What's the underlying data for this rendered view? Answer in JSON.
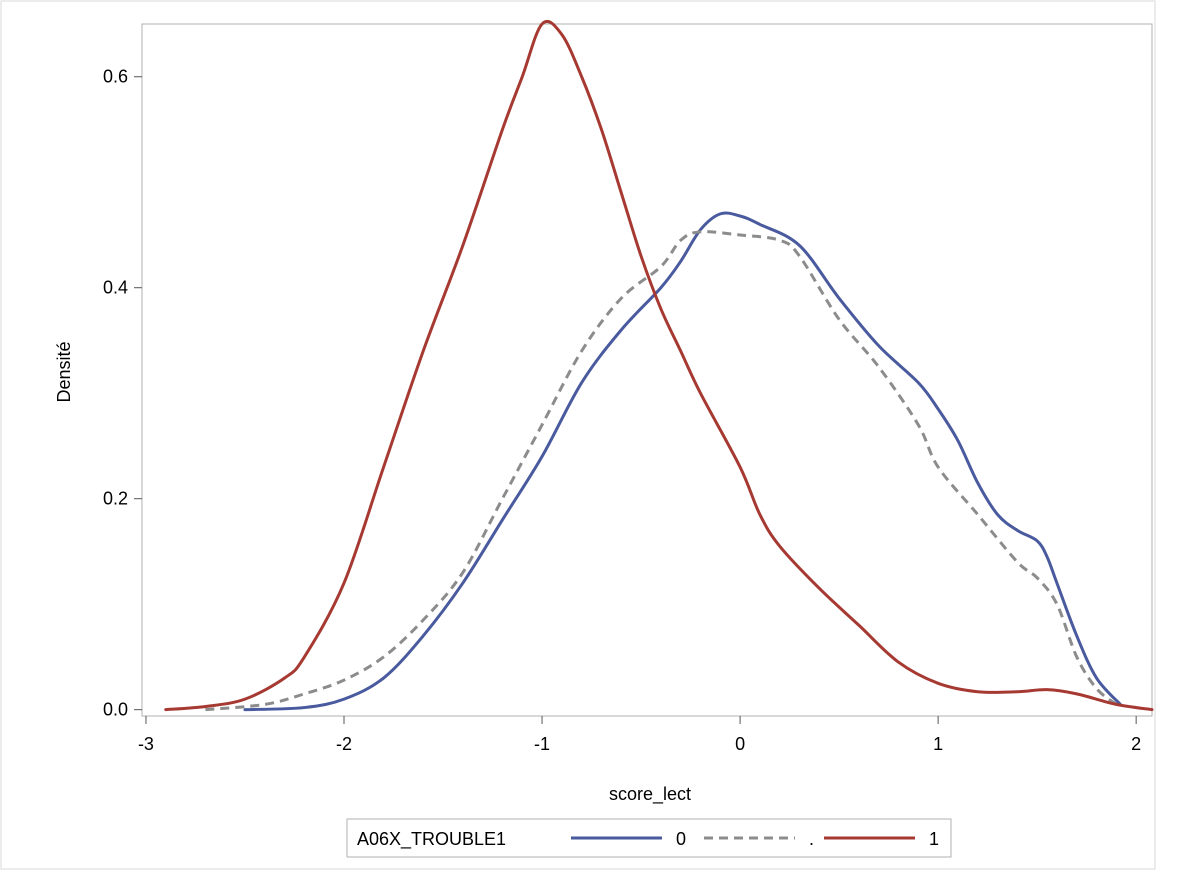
{
  "chart_data": {
    "type": "line",
    "title": "",
    "xlabel": "score_lect",
    "ylabel": "Densité",
    "xlim": [
      -3.02,
      2.08
    ],
    "ylim": [
      -0.006,
      0.65
    ],
    "xticks": [
      "-3",
      "-2",
      "-1",
      "0",
      "1",
      "2"
    ],
    "yticks": [
      "0.0",
      "0.2",
      "0.4",
      "0.6"
    ],
    "grid": false,
    "legend": {
      "title": "A06X_TROUBLE1",
      "placement": "bottom-center"
    },
    "series": [
      {
        "name": "0",
        "color": "#4a5a9e",
        "dash": "solid",
        "points": [
          [
            -2.5,
            0.0
          ],
          [
            -2.2,
            0.002
          ],
          [
            -2.0,
            0.01
          ],
          [
            -1.8,
            0.03
          ],
          [
            -1.6,
            0.07
          ],
          [
            -1.4,
            0.12
          ],
          [
            -1.2,
            0.18
          ],
          [
            -1.0,
            0.24
          ],
          [
            -0.8,
            0.31
          ],
          [
            -0.6,
            0.36
          ],
          [
            -0.4,
            0.4
          ],
          [
            -0.3,
            0.425
          ],
          [
            -0.2,
            0.455
          ],
          [
            -0.1,
            0.47
          ],
          [
            0.0,
            0.468
          ],
          [
            0.1,
            0.46
          ],
          [
            0.3,
            0.44
          ],
          [
            0.5,
            0.39
          ],
          [
            0.7,
            0.345
          ],
          [
            0.9,
            0.31
          ],
          [
            1.0,
            0.285
          ],
          [
            1.1,
            0.255
          ],
          [
            1.2,
            0.215
          ],
          [
            1.3,
            0.185
          ],
          [
            1.4,
            0.17
          ],
          [
            1.5,
            0.16
          ],
          [
            1.55,
            0.145
          ],
          [
            1.6,
            0.12
          ],
          [
            1.7,
            0.07
          ],
          [
            1.8,
            0.03
          ],
          [
            1.92,
            0.005
          ]
        ]
      },
      {
        "name": ".",
        "color": "#8c8c8c",
        "dash": "dashed",
        "points": [
          [
            -2.7,
            0.0
          ],
          [
            -2.4,
            0.005
          ],
          [
            -2.2,
            0.015
          ],
          [
            -2.0,
            0.028
          ],
          [
            -1.8,
            0.05
          ],
          [
            -1.6,
            0.085
          ],
          [
            -1.4,
            0.13
          ],
          [
            -1.2,
            0.2
          ],
          [
            -1.0,
            0.27
          ],
          [
            -0.8,
            0.34
          ],
          [
            -0.6,
            0.39
          ],
          [
            -0.4,
            0.42
          ],
          [
            -0.3,
            0.445
          ],
          [
            -0.2,
            0.453
          ],
          [
            0.0,
            0.45
          ],
          [
            0.2,
            0.445
          ],
          [
            0.3,
            0.43
          ],
          [
            0.5,
            0.37
          ],
          [
            0.7,
            0.325
          ],
          [
            0.9,
            0.27
          ],
          [
            1.0,
            0.23
          ],
          [
            1.2,
            0.185
          ],
          [
            1.4,
            0.14
          ],
          [
            1.5,
            0.125
          ],
          [
            1.6,
            0.1
          ],
          [
            1.7,
            0.05
          ],
          [
            1.8,
            0.02
          ],
          [
            1.9,
            0.005
          ]
        ]
      },
      {
        "name": "1",
        "color": "#a63a32",
        "dash": "solid",
        "points": [
          [
            -2.9,
            0.0
          ],
          [
            -2.7,
            0.003
          ],
          [
            -2.5,
            0.01
          ],
          [
            -2.3,
            0.03
          ],
          [
            -2.2,
            0.05
          ],
          [
            -2.0,
            0.12
          ],
          [
            -1.8,
            0.23
          ],
          [
            -1.6,
            0.34
          ],
          [
            -1.4,
            0.44
          ],
          [
            -1.2,
            0.55
          ],
          [
            -1.1,
            0.6
          ],
          [
            -1.0,
            0.65
          ],
          [
            -0.9,
            0.64
          ],
          [
            -0.8,
            0.6
          ],
          [
            -0.7,
            0.55
          ],
          [
            -0.6,
            0.49
          ],
          [
            -0.5,
            0.43
          ],
          [
            -0.4,
            0.38
          ],
          [
            -0.3,
            0.34
          ],
          [
            -0.2,
            0.3
          ],
          [
            0.0,
            0.23
          ],
          [
            0.1,
            0.185
          ],
          [
            0.2,
            0.155
          ],
          [
            0.4,
            0.115
          ],
          [
            0.6,
            0.08
          ],
          [
            0.8,
            0.045
          ],
          [
            1.0,
            0.025
          ],
          [
            1.2,
            0.017
          ],
          [
            1.4,
            0.017
          ],
          [
            1.55,
            0.019
          ],
          [
            1.7,
            0.015
          ],
          [
            1.9,
            0.005
          ],
          [
            2.08,
            0.0
          ]
        ]
      }
    ]
  }
}
